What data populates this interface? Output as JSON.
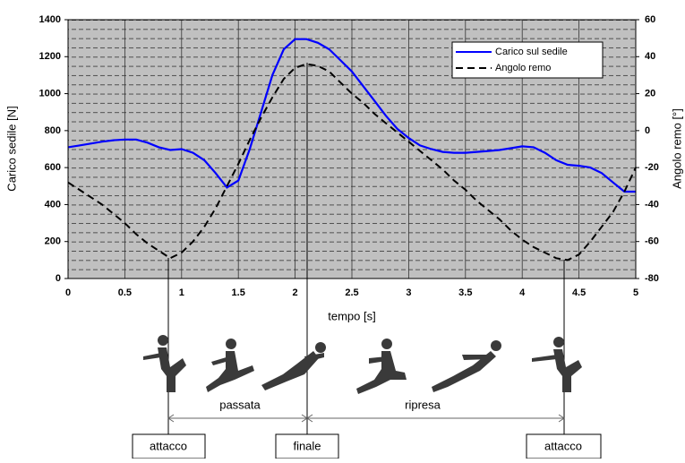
{
  "chart_data": {
    "type": "line",
    "x_label": "tempo [s]",
    "y_label": "Carico sedile [N]",
    "y2_label": "Angolo remo [°]",
    "x": [
      0,
      0.1,
      0.2,
      0.3,
      0.4,
      0.5,
      0.6,
      0.7,
      0.8,
      0.9,
      1,
      1.1,
      1.2,
      1.3,
      1.4,
      1.5,
      1.6,
      1.7,
      1.8,
      1.9,
      2,
      2.1,
      2.2,
      2.3,
      2.4,
      2.5,
      2.6,
      2.7,
      2.8,
      2.9,
      3,
      3.1,
      3.2,
      3.3,
      3.4,
      3.5,
      3.6,
      3.7,
      3.8,
      3.9,
      4,
      4.1,
      4.2,
      4.3,
      4.4,
      4.5,
      4.6,
      4.7,
      4.8,
      4.9,
      5
    ],
    "series": [
      {
        "name": "Carico sul sedile",
        "color": "#0000ff",
        "axis": "y",
        "values": [
          710,
          720,
          730,
          740,
          748,
          752,
          752,
          735,
          710,
          695,
          700,
          680,
          640,
          570,
          492,
          530,
          700,
          900,
          1100,
          1240,
          1295,
          1295,
          1275,
          1240,
          1180,
          1120,
          1040,
          960,
          880,
          810,
          760,
          720,
          700,
          685,
          680,
          680,
          685,
          690,
          695,
          705,
          715,
          710,
          680,
          640,
          615,
          610,
          600,
          570,
          520,
          470,
          470
        ]
      },
      {
        "name": "Angolo remo",
        "color": "#000000",
        "axis": "y2",
        "dashed": true,
        "values": [
          -28,
          -32,
          -36,
          -40,
          -45,
          -50,
          -56,
          -61,
          -65,
          -69,
          -66,
          -60,
          -52,
          -42,
          -30,
          -18,
          -5,
          7,
          18,
          28,
          34,
          36,
          35,
          32,
          26,
          20,
          15,
          9,
          4,
          -1,
          -6,
          -11,
          -16,
          -21,
          -27,
          -32,
          -38,
          -43,
          -48,
          -54,
          -59,
          -63,
          -66,
          -69,
          -70,
          -67,
          -60,
          -52,
          -44,
          -33,
          -20
        ]
      }
    ],
    "xlim": [
      0,
      5
    ],
    "xticks": [
      0,
      0.5,
      1,
      1.5,
      2,
      2.5,
      3,
      3.5,
      4,
      4.5,
      5
    ],
    "ylim": [
      0,
      1400
    ],
    "yticks": [
      0,
      200,
      400,
      600,
      800,
      1000,
      1200,
      1400
    ],
    "y2lim": [
      -80,
      60
    ],
    "y2ticks": [
      -80,
      -60,
      -40,
      -20,
      0,
      20,
      40,
      60
    ],
    "grid": true,
    "legend": "upper right",
    "phases": [
      "passata",
      "ripresa"
    ],
    "annotations": [
      "attacco",
      "finale",
      "attacco"
    ]
  }
}
